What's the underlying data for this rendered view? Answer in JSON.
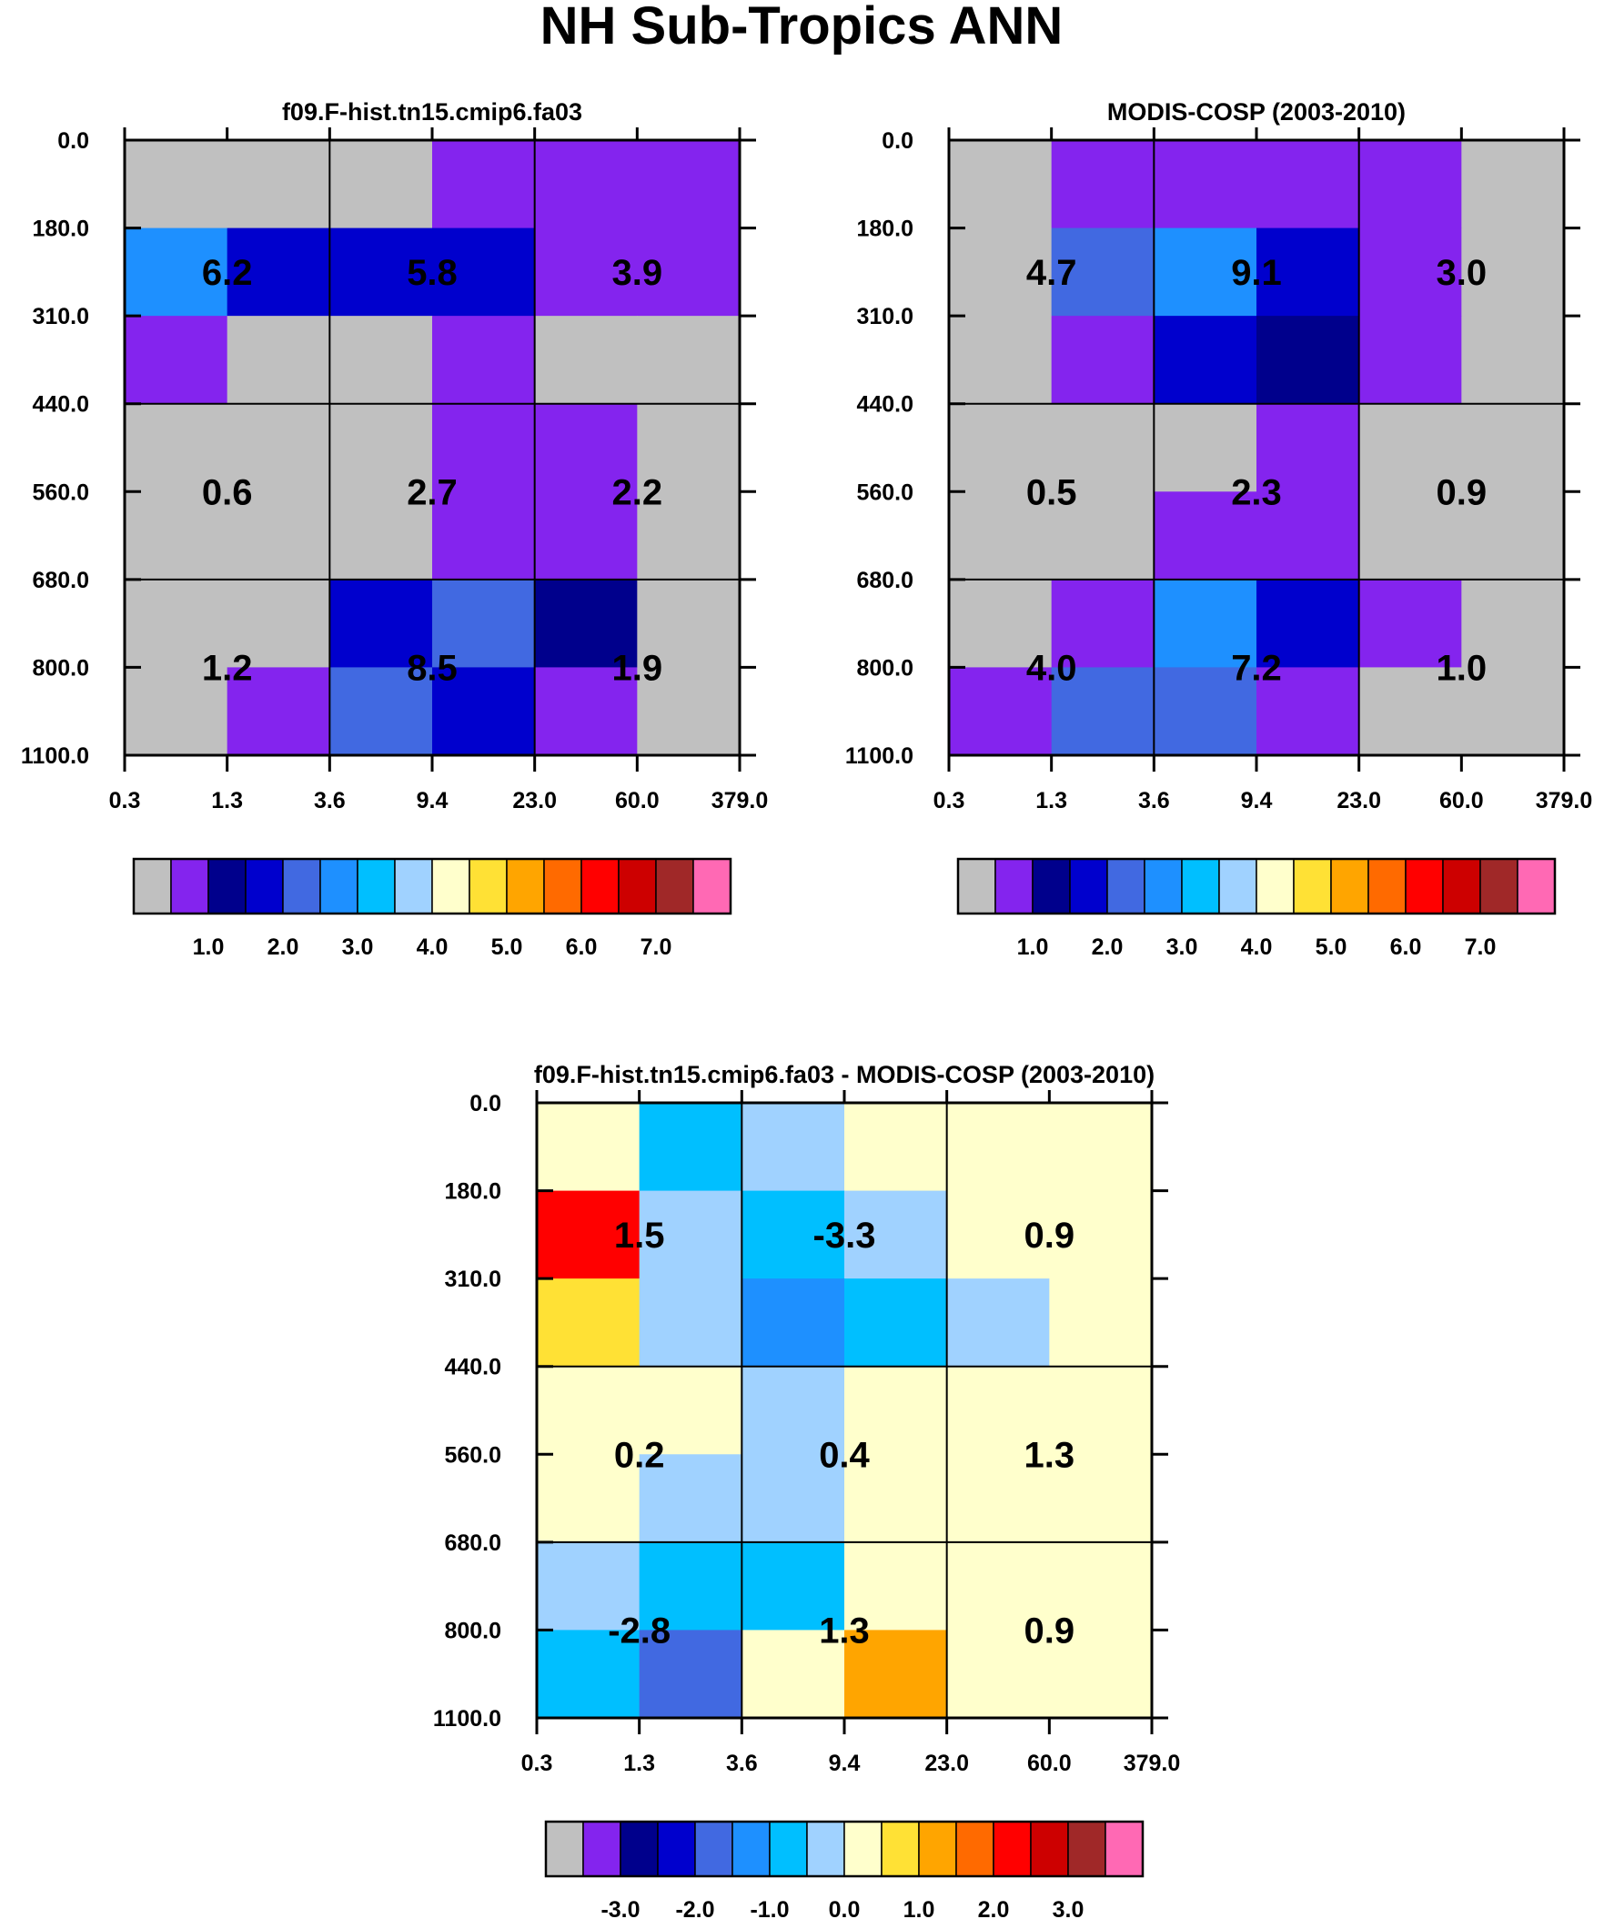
{
  "title": "NH Sub-Tropics ANN",
  "colors": {
    "gray": "#c0c0c0",
    "violet": "#8424ee",
    "navy": "#00008c",
    "blue": "#0000cd",
    "royal": "#4169e1",
    "dodger": "#1e90ff",
    "sky": "#00bfff",
    "lightblue": "#a0d2ff",
    "cream": "#ffffcc",
    "gold": "#ffe135",
    "orange": "#ffa500",
    "darkorange": "#ff6a00",
    "red": "#ff0000",
    "crimson": "#cd0000",
    "brown": "#a02828",
    "pink": "#ff69b4"
  },
  "chart_data": [
    {
      "type": "heatmap",
      "id": "model",
      "title": "f09.F-hist.tn15.cmip6.fa03",
      "x_ticks": [
        "0.3",
        "1.3",
        "3.6",
        "9.4",
        "23.0",
        "60.0",
        "379.0"
      ],
      "y_ticks": [
        "0.0",
        "180.0",
        "310.0",
        "440.0",
        "560.0",
        "680.0",
        "800.0",
        "1100.0"
      ],
      "xlabel": "",
      "ylabel": "",
      "cells": [
        [
          "gray",
          "gray",
          "gray",
          "violet",
          "violet",
          "violet"
        ],
        [
          "dodger",
          "blue",
          "blue",
          "blue",
          "violet",
          "violet"
        ],
        [
          "violet",
          "gray",
          "gray",
          "violet",
          "gray",
          "gray"
        ],
        [
          "gray",
          "gray",
          "gray",
          "violet",
          "violet",
          "gray"
        ],
        [
          "gray",
          "gray",
          "gray",
          "violet",
          "violet",
          "gray"
        ],
        [
          "gray",
          "gray",
          "blue",
          "royal",
          "navy",
          "gray"
        ],
        [
          "gray",
          "violet",
          "royal",
          "blue",
          "violet",
          "gray"
        ]
      ],
      "box_values": [
        [
          "6.2",
          "5.8",
          "3.9"
        ],
        [
          "0.6",
          "2.7",
          "2.2"
        ],
        [
          "1.2",
          "8.5",
          "1.9"
        ]
      ],
      "colorbar": {
        "colors": [
          "gray",
          "violet",
          "navy",
          "blue",
          "royal",
          "dodger",
          "sky",
          "lightblue",
          "cream",
          "gold",
          "orange",
          "darkorange",
          "red",
          "crimson",
          "brown",
          "pink"
        ],
        "labels": [
          {
            "text": "1.0",
            "after_box": 2
          },
          {
            "text": "2.0",
            "after_box": 4
          },
          {
            "text": "3.0",
            "after_box": 6
          },
          {
            "text": "4.0",
            "after_box": 8
          },
          {
            "text": "5.0",
            "after_box": 10
          },
          {
            "text": "6.0",
            "after_box": 12
          },
          {
            "text": "7.0",
            "after_box": 14
          }
        ]
      }
    },
    {
      "type": "heatmap",
      "id": "obs",
      "title": "MODIS-COSP (2003-2010)",
      "x_ticks": [
        "0.3",
        "1.3",
        "3.6",
        "9.4",
        "23.0",
        "60.0",
        "379.0"
      ],
      "y_ticks": [
        "0.0",
        "180.0",
        "310.0",
        "440.0",
        "560.0",
        "680.0",
        "800.0",
        "1100.0"
      ],
      "xlabel": "",
      "ylabel": "",
      "cells": [
        [
          "gray",
          "violet",
          "violet",
          "violet",
          "violet",
          "gray"
        ],
        [
          "gray",
          "royal",
          "dodger",
          "blue",
          "violet",
          "gray"
        ],
        [
          "gray",
          "violet",
          "blue",
          "navy",
          "violet",
          "gray"
        ],
        [
          "gray",
          "gray",
          "gray",
          "violet",
          "gray",
          "gray"
        ],
        [
          "gray",
          "gray",
          "violet",
          "violet",
          "gray",
          "gray"
        ],
        [
          "gray",
          "violet",
          "dodger",
          "blue",
          "violet",
          "gray"
        ],
        [
          "violet",
          "royal",
          "royal",
          "violet",
          "gray",
          "gray"
        ]
      ],
      "box_values": [
        [
          "4.7",
          "9.1",
          "3.0"
        ],
        [
          "0.5",
          "2.3",
          "0.9"
        ],
        [
          "4.0",
          "7.2",
          "1.0"
        ]
      ],
      "colorbar": {
        "colors": [
          "gray",
          "violet",
          "navy",
          "blue",
          "royal",
          "dodger",
          "sky",
          "lightblue",
          "cream",
          "gold",
          "orange",
          "darkorange",
          "red",
          "crimson",
          "brown",
          "pink"
        ],
        "labels": [
          {
            "text": "1.0",
            "after_box": 2
          },
          {
            "text": "2.0",
            "after_box": 4
          },
          {
            "text": "3.0",
            "after_box": 6
          },
          {
            "text": "4.0",
            "after_box": 8
          },
          {
            "text": "5.0",
            "after_box": 10
          },
          {
            "text": "6.0",
            "after_box": 12
          },
          {
            "text": "7.0",
            "after_box": 14
          }
        ]
      }
    },
    {
      "type": "heatmap",
      "id": "diff",
      "title": "f09.F-hist.tn15.cmip6.fa03 - MODIS-COSP (2003-2010)",
      "x_ticks": [
        "0.3",
        "1.3",
        "3.6",
        "9.4",
        "23.0",
        "60.0",
        "379.0"
      ],
      "y_ticks": [
        "0.0",
        "180.0",
        "310.0",
        "440.0",
        "560.0",
        "680.0",
        "800.0",
        "1100.0"
      ],
      "xlabel": "",
      "ylabel": "",
      "cells": [
        [
          "cream",
          "sky",
          "lightblue",
          "cream",
          "cream",
          "cream"
        ],
        [
          "red",
          "lightblue",
          "sky",
          "lightblue",
          "cream",
          "cream"
        ],
        [
          "gold",
          "lightblue",
          "dodger",
          "sky",
          "lightblue",
          "cream"
        ],
        [
          "cream",
          "cream",
          "lightblue",
          "cream",
          "cream",
          "cream"
        ],
        [
          "cream",
          "lightblue",
          "lightblue",
          "cream",
          "cream",
          "cream"
        ],
        [
          "lightblue",
          "sky",
          "sky",
          "cream",
          "cream",
          "cream"
        ],
        [
          "sky",
          "royal",
          "cream",
          "orange",
          "cream",
          "cream"
        ]
      ],
      "box_values": [
        [
          "1.5",
          "-3.3",
          "0.9"
        ],
        [
          "0.2",
          "0.4",
          "1.3"
        ],
        [
          "-2.8",
          "1.3",
          "0.9"
        ]
      ],
      "colorbar": {
        "colors": [
          "gray",
          "violet",
          "navy",
          "blue",
          "royal",
          "dodger",
          "sky",
          "lightblue",
          "cream",
          "gold",
          "orange",
          "darkorange",
          "red",
          "crimson",
          "brown",
          "pink"
        ],
        "labels": [
          {
            "text": "-3.0",
            "after_box": 2
          },
          {
            "text": "-2.0",
            "after_box": 4
          },
          {
            "text": "-1.0",
            "after_box": 6
          },
          {
            "text": "0.0",
            "after_box": 8
          },
          {
            "text": "1.0",
            "after_box": 10
          },
          {
            "text": "2.0",
            "after_box": 12
          },
          {
            "text": "3.0",
            "after_box": 14
          }
        ]
      }
    }
  ]
}
